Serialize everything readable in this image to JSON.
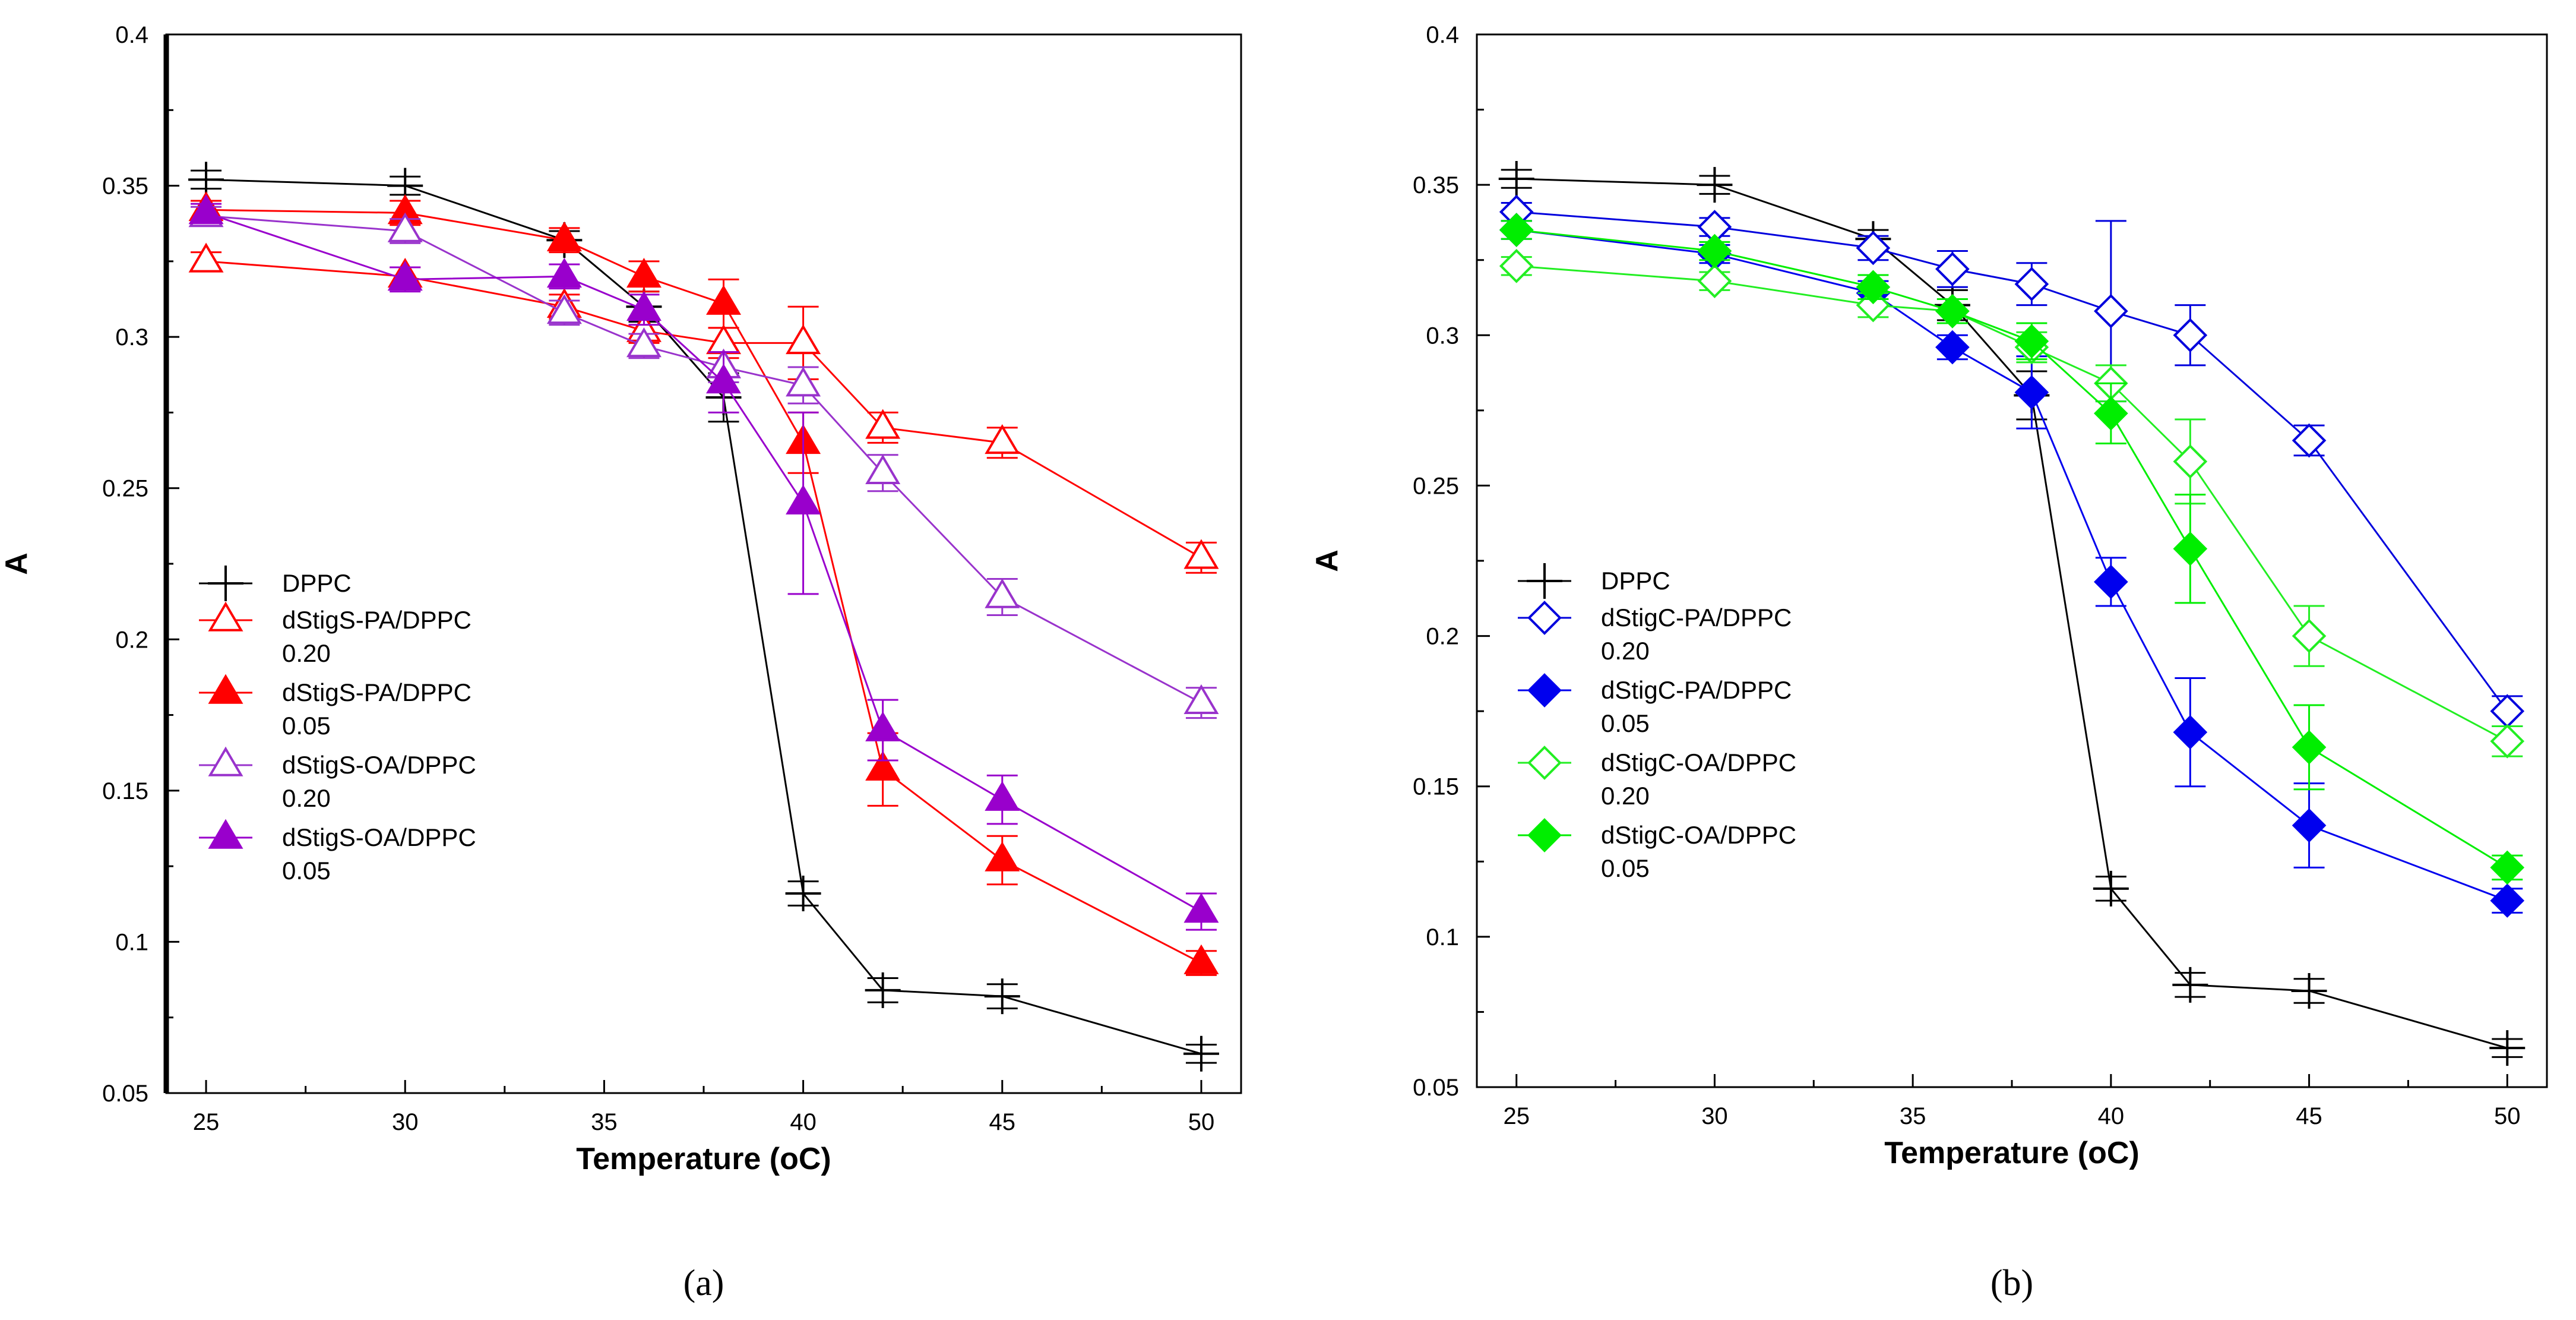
{
  "chart_data": [
    {
      "type": "line",
      "panel_label": "a",
      "panel_label_display": "(a)",
      "xlabel": "Temperature (oC)",
      "ylabel": "A",
      "xlim": [
        24,
        51
      ],
      "ylim": [
        0.05,
        0.4
      ],
      "x_ticks": [
        "25",
        "30",
        "35",
        "40",
        "45",
        "50"
      ],
      "y_ticks": [
        "0.05",
        "0.1",
        "0.15",
        "0.2",
        "0.25",
        "0.3",
        "0.35",
        "0.4"
      ],
      "legend_position": "center-left",
      "series": [
        {
          "name": "DPPC",
          "color": "#000000",
          "marker": "plus",
          "filled": false,
          "x": [
            25,
            30,
            34,
            36,
            38,
            40,
            42,
            45,
            50
          ],
          "y": [
            0.352,
            0.35,
            0.332,
            0.31,
            0.28,
            0.116,
            0.084,
            0.082,
            0.063
          ],
          "err": [
            0.003,
            0.003,
            0.003,
            0.005,
            0.008,
            0.004,
            0.004,
            0.004,
            0.003
          ]
        },
        {
          "name": "dStigS-PA/DPPC 0.20",
          "legend_lines": [
            "dStigS-PA/DPPC",
            "0.20"
          ],
          "color": "#ff0000",
          "marker": "triangle",
          "filled": false,
          "x": [
            25,
            30,
            34,
            36,
            38,
            40,
            42,
            45,
            50
          ],
          "y": [
            0.325,
            0.32,
            0.31,
            0.302,
            0.298,
            0.298,
            0.27,
            0.265,
            0.227
          ],
          "err": [
            0.003,
            0.003,
            0.004,
            0.004,
            0.005,
            0.012,
            0.005,
            0.005,
            0.005
          ]
        },
        {
          "name": "dStigS-PA/DPPC 0.05",
          "legend_lines": [
            "dStigS-PA/DPPC",
            "0.05"
          ],
          "color": "#ff0000",
          "marker": "triangle",
          "filled": true,
          "x": [
            25,
            30,
            34,
            36,
            38,
            40,
            42,
            45,
            50
          ],
          "y": [
            0.342,
            0.341,
            0.332,
            0.32,
            0.311,
            0.265,
            0.157,
            0.127,
            0.093
          ],
          "err": [
            0.003,
            0.004,
            0.004,
            0.005,
            0.008,
            0.01,
            0.012,
            0.008,
            0.004
          ]
        },
        {
          "name": "dStigS-OA/DPPC 0.20",
          "legend_lines": [
            "dStigS-OA/DPPC",
            "0.20"
          ],
          "color": "#9933cc",
          "marker": "triangle",
          "filled": false,
          "x": [
            25,
            30,
            34,
            36,
            38,
            40,
            42,
            45,
            50
          ],
          "y": [
            0.34,
            0.335,
            0.308,
            0.297,
            0.29,
            0.284,
            0.255,
            0.214,
            0.179
          ],
          "err": [
            0.003,
            0.004,
            0.004,
            0.004,
            0.005,
            0.006,
            0.006,
            0.006,
            0.005
          ]
        },
        {
          "name": "dStigS-OA/DPPC 0.05",
          "legend_lines": [
            "dStigS-OA/DPPC",
            "0.05"
          ],
          "color": "#9900cc",
          "marker": "triangle",
          "filled": true,
          "x": [
            25,
            30,
            34,
            36,
            38,
            40,
            42,
            45,
            50
          ],
          "y": [
            0.341,
            0.319,
            0.32,
            0.309,
            0.285,
            0.245,
            0.17,
            0.147,
            0.11
          ],
          "err": [
            0.003,
            0.004,
            0.004,
            0.005,
            0.01,
            0.03,
            0.01,
            0.008,
            0.006
          ]
        }
      ]
    },
    {
      "type": "line",
      "panel_label": "b",
      "panel_label_display": "(b)",
      "xlabel": "Temperature (oC)",
      "ylabel": "A",
      "xlim": [
        24,
        51
      ],
      "ylim": [
        0.05,
        0.4
      ],
      "x_ticks": [
        "25",
        "30",
        "35",
        "40",
        "45",
        "50"
      ],
      "y_ticks": [
        "0.05",
        "0.1",
        "0.15",
        "0.2",
        "0.25",
        "0.3",
        "0.35",
        "0.4"
      ],
      "legend_position": "center-left",
      "series": [
        {
          "name": "DPPC",
          "color": "#000000",
          "marker": "plus",
          "filled": false,
          "x": [
            25,
            30,
            34,
            36,
            38,
            40,
            42,
            45,
            50
          ],
          "y": [
            0.352,
            0.35,
            0.332,
            0.31,
            0.28,
            0.116,
            0.084,
            0.082,
            0.063
          ],
          "err": [
            0.003,
            0.003,
            0.003,
            0.005,
            0.008,
            0.004,
            0.004,
            0.004,
            0.003
          ]
        },
        {
          "name": "dStigC-PA/DPPC 0.20",
          "legend_lines": [
            "dStigC-PA/DPPC",
            " 0.20"
          ],
          "color": "#0000dd",
          "marker": "diamond",
          "filled": false,
          "x": [
            25,
            30,
            34,
            36,
            38,
            40,
            42,
            45,
            50
          ],
          "y": [
            0.341,
            0.336,
            0.329,
            0.322,
            0.317,
            0.308,
            0.3,
            0.265,
            0.175
          ],
          "err": [
            0.003,
            0.003,
            0.004,
            0.006,
            0.007,
            0.03,
            0.01,
            0.005,
            0.005
          ]
        },
        {
          "name": "dStigC-PA/DPPC 0.05",
          "legend_lines": [
            "dStigC-PA/DPPC",
            "0.05"
          ],
          "color": "#0000ee",
          "marker": "diamond",
          "filled": true,
          "x": [
            25,
            30,
            34,
            36,
            38,
            40,
            42,
            45,
            50
          ],
          "y": [
            0.335,
            0.327,
            0.314,
            0.296,
            0.281,
            0.218,
            0.168,
            0.137,
            0.112
          ],
          "err": [
            0.003,
            0.003,
            0.004,
            0.004,
            0.012,
            0.008,
            0.018,
            0.014,
            0.004
          ]
        },
        {
          "name": "dStigC-OA/DPPC 0.20",
          "legend_lines": [
            "dStigC-OA/DPPC",
            "0.20"
          ],
          "color": "#22ee22",
          "marker": "diamond",
          "filled": false,
          "x": [
            25,
            30,
            34,
            36,
            38,
            40,
            42,
            45,
            50
          ],
          "y": [
            0.323,
            0.318,
            0.31,
            0.308,
            0.296,
            0.284,
            0.258,
            0.2,
            0.165
          ],
          "err": [
            0.003,
            0.003,
            0.004,
            0.004,
            0.005,
            0.006,
            0.014,
            0.01,
            0.005
          ]
        },
        {
          "name": "dStigC-OA/DPPC 0.05",
          "legend_lines": [
            "dStigC-OA/DPPC",
            "0.05"
          ],
          "color": "#00ee00",
          "marker": "diamond",
          "filled": true,
          "x": [
            25,
            30,
            34,
            36,
            38,
            40,
            42,
            45,
            50
          ],
          "y": [
            0.335,
            0.328,
            0.316,
            0.308,
            0.298,
            0.274,
            0.229,
            0.163,
            0.123
          ],
          "err": [
            0.003,
            0.003,
            0.004,
            0.004,
            0.006,
            0.01,
            0.018,
            0.014,
            0.004
          ]
        }
      ]
    }
  ]
}
